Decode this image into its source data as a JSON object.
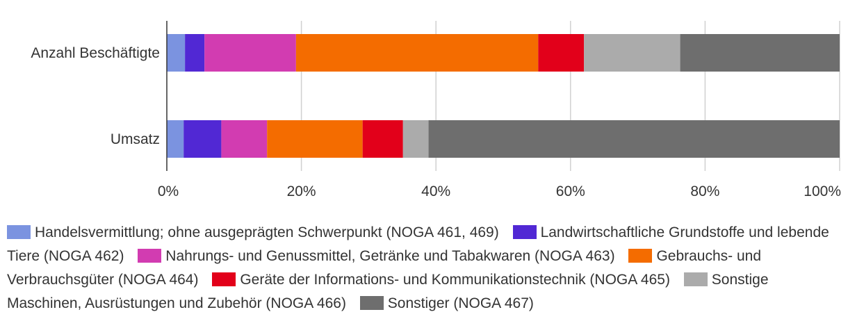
{
  "chart_data": {
    "type": "bar",
    "orientation": "horizontal",
    "stacked": true,
    "percent_scale": true,
    "categories": [
      "Anzahl Beschäftigte",
      "Umsatz"
    ],
    "xlim": [
      0,
      100
    ],
    "xticks": [
      0,
      20,
      40,
      60,
      80,
      100
    ],
    "xtick_labels": [
      "0%",
      "20%",
      "40%",
      "60%",
      "80%",
      "100%"
    ],
    "grid": true,
    "legend_position": "bottom",
    "series": [
      {
        "name": "Handelsvermittlung; ohne ausgeprägten Schwerpunkt (NOGA 461, 469)",
        "color": "#7b93e0",
        "values": [
          2.7,
          2.5
        ]
      },
      {
        "name": "Landwirtschaftliche Grundstoffe und lebende Tiere (NOGA 462)",
        "color": "#5128d4",
        "values": [
          2.9,
          5.6
        ]
      },
      {
        "name": "Nahrungs- und Genussmittel, Getränke und Tabakwaren (NOGA 463)",
        "color": "#d23cb1",
        "values": [
          13.6,
          6.8
        ]
      },
      {
        "name": "Gebrauchs- und Verbrauchsgüter (NOGA 464)",
        "color": "#f46c00",
        "values": [
          36.0,
          14.2
        ]
      },
      {
        "name": "Geräte der Informations- und Kommunikationstechnik (NOGA 465)",
        "color": "#e2001a",
        "values": [
          6.8,
          6.0
        ]
      },
      {
        "name": "Sonstige Maschinen, Ausrüstungen und Zubehör (NOGA 466)",
        "color": "#ababab",
        "values": [
          14.3,
          3.8
        ]
      },
      {
        "name": "Sonstiger (NOGA 467)",
        "color": "#6e6e6e",
        "values": [
          23.7,
          61.1
        ]
      }
    ]
  }
}
